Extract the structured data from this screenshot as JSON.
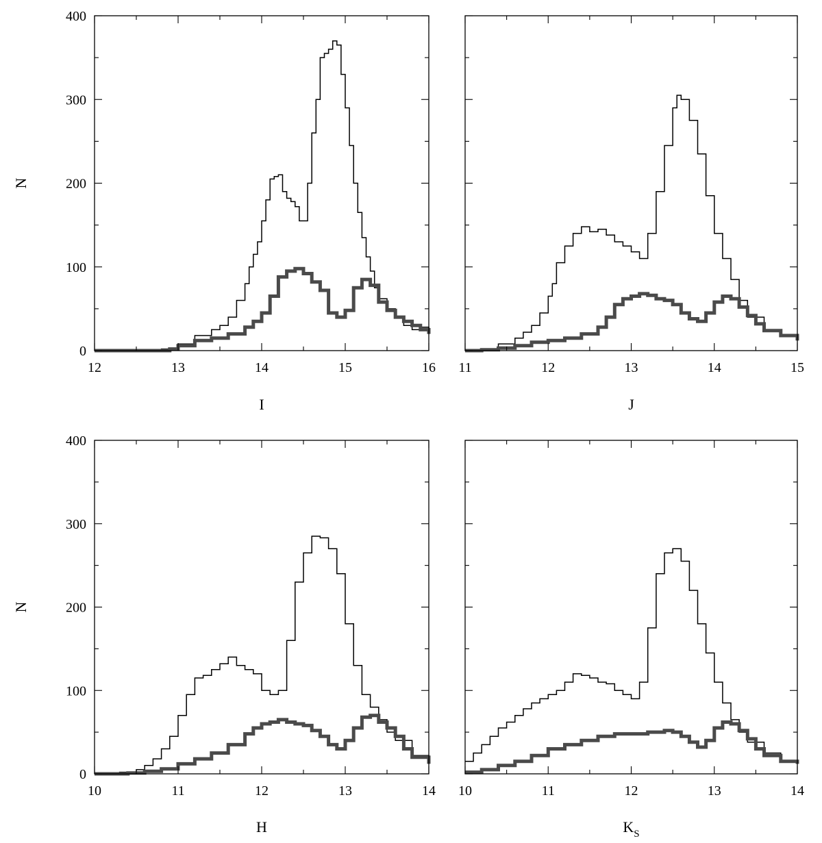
{
  "chart_data": [
    {
      "type": "histogram",
      "xlabel": "I",
      "ylabel": "N",
      "xlim": [
        12,
        16
      ],
      "ylim": [
        0,
        400
      ],
      "xticks": [
        "12",
        "13",
        "14",
        "15",
        "16"
      ],
      "yticks": [
        "0",
        "100",
        "200",
        "300",
        "400"
      ],
      "grid": false,
      "series": [
        {
          "style": "thin",
          "color": "#000000",
          "x": [
            12.0,
            12.5,
            12.8,
            13.0,
            13.2,
            13.4,
            13.5,
            13.6,
            13.7,
            13.8,
            13.85,
            13.9,
            13.95,
            14.0,
            14.05,
            14.1,
            14.15,
            14.2,
            14.25,
            14.3,
            14.35,
            14.4,
            14.45,
            14.5,
            14.55,
            14.6,
            14.65,
            14.7,
            14.75,
            14.8,
            14.85,
            14.9,
            14.95,
            15.0,
            15.05,
            15.1,
            15.15,
            15.2,
            15.25,
            15.3,
            15.35,
            15.4,
            15.5,
            15.6,
            15.7,
            15.8,
            15.9,
            16.0
          ],
          "y": [
            0,
            0,
            2,
            8,
            18,
            25,
            30,
            40,
            60,
            80,
            100,
            115,
            130,
            155,
            180,
            205,
            208,
            210,
            190,
            182,
            178,
            172,
            155,
            155,
            200,
            260,
            300,
            350,
            355,
            360,
            370,
            365,
            330,
            290,
            245,
            200,
            165,
            135,
            112,
            95,
            75,
            62,
            50,
            40,
            30,
            25,
            28,
            20
          ]
        },
        {
          "style": "thick",
          "color": "#4a4a4a",
          "x": [
            12.0,
            12.5,
            12.9,
            13.0,
            13.2,
            13.4,
            13.6,
            13.8,
            13.9,
            14.0,
            14.1,
            14.2,
            14.3,
            14.4,
            14.5,
            14.6,
            14.7,
            14.8,
            14.9,
            15.0,
            15.1,
            15.2,
            15.3,
            15.4,
            15.5,
            15.6,
            15.7,
            15.8,
            15.9,
            16.0
          ],
          "y": [
            0,
            0,
            2,
            6,
            12,
            15,
            20,
            28,
            35,
            45,
            65,
            88,
            95,
            98,
            92,
            82,
            72,
            45,
            40,
            48,
            75,
            85,
            78,
            58,
            48,
            40,
            35,
            30,
            25,
            20
          ]
        }
      ]
    },
    {
      "type": "histogram",
      "xlabel": "J",
      "ylabel": "",
      "xlim": [
        11,
        15
      ],
      "ylim": [
        0,
        400
      ],
      "xticks": [
        "11",
        "12",
        "13",
        "14",
        "15"
      ],
      "yticks": [],
      "grid": false,
      "series": [
        {
          "style": "thin",
          "color": "#000000",
          "x": [
            11.0,
            11.2,
            11.4,
            11.6,
            11.7,
            11.8,
            11.9,
            12.0,
            12.05,
            12.1,
            12.2,
            12.3,
            12.4,
            12.5,
            12.6,
            12.7,
            12.8,
            12.9,
            13.0,
            13.1,
            13.2,
            13.3,
            13.4,
            13.5,
            13.55,
            13.6,
            13.7,
            13.8,
            13.9,
            14.0,
            14.1,
            14.2,
            14.3,
            14.4,
            14.6,
            14.8,
            15.0
          ],
          "y": [
            0,
            2,
            8,
            15,
            22,
            30,
            45,
            65,
            80,
            105,
            125,
            140,
            148,
            142,
            145,
            138,
            130,
            125,
            118,
            110,
            140,
            190,
            245,
            290,
            305,
            300,
            275,
            235,
            185,
            140,
            110,
            85,
            60,
            40,
            25,
            18,
            12
          ]
        },
        {
          "style": "thick",
          "color": "#4a4a4a",
          "x": [
            11.0,
            11.2,
            11.4,
            11.6,
            11.8,
            12.0,
            12.2,
            12.4,
            12.6,
            12.7,
            12.8,
            12.9,
            13.0,
            13.1,
            13.2,
            13.3,
            13.4,
            13.5,
            13.6,
            13.7,
            13.8,
            13.9,
            14.0,
            14.1,
            14.2,
            14.3,
            14.4,
            14.5,
            14.6,
            14.8,
            15.0
          ],
          "y": [
            0,
            1,
            3,
            6,
            10,
            12,
            15,
            20,
            28,
            40,
            55,
            62,
            65,
            68,
            66,
            62,
            60,
            55,
            45,
            38,
            35,
            45,
            58,
            65,
            62,
            52,
            42,
            32,
            24,
            18,
            12
          ]
        }
      ]
    },
    {
      "type": "histogram",
      "xlabel": "H",
      "ylabel": "N",
      "xlim": [
        10,
        14
      ],
      "ylim": [
        0,
        400
      ],
      "xticks": [
        "10",
        "11",
        "12",
        "13",
        "14"
      ],
      "yticks": [
        "0",
        "100",
        "200",
        "300",
        "400"
      ],
      "grid": false,
      "series": [
        {
          "style": "thin",
          "color": "#000000",
          "x": [
            10.0,
            10.3,
            10.5,
            10.6,
            10.7,
            10.8,
            10.9,
            11.0,
            11.1,
            11.2,
            11.3,
            11.4,
            11.5,
            11.6,
            11.7,
            11.8,
            11.9,
            12.0,
            12.1,
            12.2,
            12.3,
            12.4,
            12.5,
            12.6,
            12.7,
            12.8,
            12.9,
            13.0,
            13.1,
            13.2,
            13.3,
            13.4,
            13.5,
            13.6,
            13.8,
            14.0
          ],
          "y": [
            0,
            2,
            5,
            10,
            18,
            30,
            45,
            70,
            95,
            115,
            118,
            125,
            132,
            140,
            130,
            125,
            120,
            100,
            95,
            100,
            160,
            230,
            265,
            285,
            283,
            270,
            240,
            180,
            130,
            95,
            80,
            65,
            50,
            40,
            22,
            12
          ]
        },
        {
          "style": "thick",
          "color": "#4a4a4a",
          "x": [
            10.0,
            10.4,
            10.6,
            10.8,
            11.0,
            11.2,
            11.4,
            11.6,
            11.8,
            11.9,
            12.0,
            12.1,
            12.2,
            12.3,
            12.4,
            12.5,
            12.6,
            12.7,
            12.8,
            12.9,
            13.0,
            13.1,
            13.2,
            13.3,
            13.4,
            13.5,
            13.6,
            13.7,
            13.8,
            14.0
          ],
          "y": [
            0,
            1,
            3,
            6,
            12,
            18,
            25,
            35,
            48,
            55,
            60,
            62,
            65,
            62,
            60,
            58,
            52,
            45,
            35,
            30,
            40,
            55,
            68,
            70,
            62,
            55,
            45,
            30,
            20,
            12
          ]
        }
      ]
    },
    {
      "type": "histogram",
      "xlabel": "K",
      "xlabel_subscript": "S",
      "ylabel": "",
      "xlim": [
        10,
        14
      ],
      "ylim": [
        0,
        400
      ],
      "xticks": [
        "10",
        "11",
        "12",
        "13",
        "14"
      ],
      "yticks": [],
      "grid": false,
      "series": [
        {
          "style": "thin",
          "color": "#000000",
          "x": [
            10.0,
            10.1,
            10.2,
            10.3,
            10.4,
            10.5,
            10.6,
            10.7,
            10.8,
            10.9,
            11.0,
            11.1,
            11.2,
            11.3,
            11.4,
            11.5,
            11.6,
            11.7,
            11.8,
            11.9,
            12.0,
            12.1,
            12.2,
            12.3,
            12.4,
            12.5,
            12.6,
            12.7,
            12.8,
            12.9,
            13.0,
            13.1,
            13.2,
            13.3,
            13.4,
            13.6,
            13.8,
            14.0
          ],
          "y": [
            15,
            25,
            35,
            45,
            55,
            62,
            70,
            78,
            85,
            90,
            95,
            100,
            110,
            120,
            118,
            115,
            110,
            108,
            100,
            95,
            90,
            110,
            175,
            240,
            265,
            270,
            255,
            220,
            180,
            145,
            110,
            85,
            65,
            50,
            38,
            25,
            15,
            12
          ]
        },
        {
          "style": "thick",
          "color": "#4a4a4a",
          "x": [
            10.0,
            10.2,
            10.4,
            10.6,
            10.8,
            11.0,
            11.2,
            11.4,
            11.6,
            11.8,
            12.0,
            12.2,
            12.4,
            12.5,
            12.6,
            12.7,
            12.8,
            12.9,
            13.0,
            13.1,
            13.2,
            13.3,
            13.4,
            13.5,
            13.6,
            13.8,
            14.0
          ],
          "y": [
            2,
            5,
            10,
            15,
            22,
            30,
            35,
            40,
            45,
            48,
            48,
            50,
            52,
            50,
            45,
            38,
            32,
            40,
            55,
            62,
            60,
            52,
            42,
            30,
            22,
            15,
            12
          ]
        }
      ]
    }
  ]
}
